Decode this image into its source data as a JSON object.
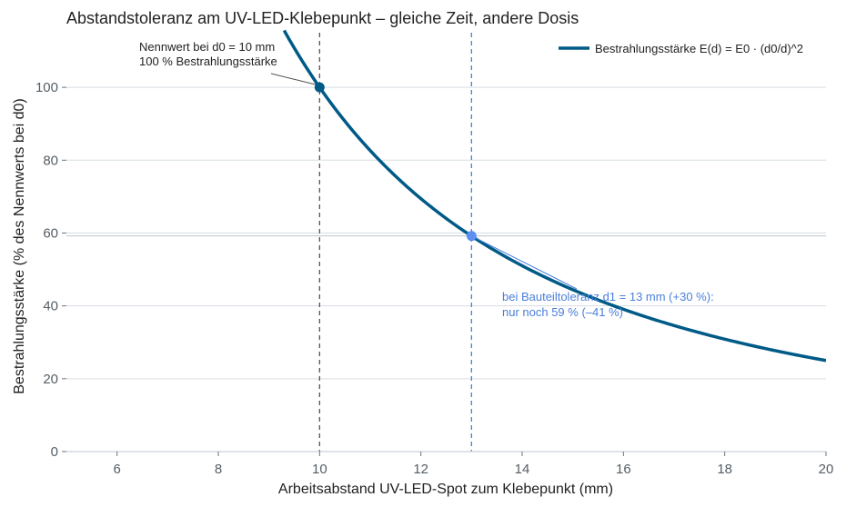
{
  "chart_data": {
    "type": "line",
    "title": "Abstandstoleranz am UV-LED-Klebepunkt – gleiche Zeit, andere Dosis",
    "xlabel": "Arbeitsabstand UV-LED-Spot zum Klebepunkt (mm)",
    "ylabel": "Bestrahlungsstärke (% des Nennwerts bei d0)",
    "xlim": [
      5,
      20
    ],
    "ylim": [
      0,
      115
    ],
    "xticks": [
      6,
      8,
      10,
      12,
      14,
      16,
      18,
      20
    ],
    "yticks": [
      0,
      20,
      40,
      60,
      80,
      100
    ],
    "grid": "horizontal",
    "legend_position": "top-right",
    "series": [
      {
        "name": "Bestrahlungsstärke E(d) = E0 · (d0/d)^2",
        "color": "#005a87",
        "formula": "100 * (10/x)^2",
        "x": [
          9.3,
          9.5,
          10,
          10.5,
          11,
          11.5,
          12,
          12.5,
          13,
          13.5,
          14,
          14.5,
          15,
          15.5,
          16,
          16.5,
          17,
          17.5,
          18,
          18.5,
          19,
          19.5,
          20
        ],
        "y": [
          115.6,
          110.8,
          100,
          90.7,
          82.6,
          75.6,
          69.4,
          64,
          59.2,
          54.9,
          51,
          47.6,
          44.4,
          41.6,
          39.1,
          36.7,
          34.6,
          32.7,
          30.9,
          29.2,
          27.7,
          26.3,
          25
        ]
      }
    ],
    "vlines": [
      {
        "x": 10,
        "color": "#555555",
        "style": "dashed"
      },
      {
        "x": 13,
        "color": "#4a7fd9",
        "style": "dashed"
      }
    ],
    "hline": {
      "y": 59.2,
      "color": "#bcc4cc"
    },
    "points": [
      {
        "x": 10,
        "y": 100,
        "color": "#005a87"
      },
      {
        "x": 13,
        "y": 59.2,
        "color": "#5b8ff0"
      }
    ],
    "annotations": [
      {
        "lines": [
          "Nennwert bei d0 = 10 mm",
          "100 % Bestrahlungsstärke"
        ],
        "color": "#222222",
        "point": {
          "x": 10,
          "y": 100
        }
      },
      {
        "lines": [
          "bei Bauteiltoleranz d1 = 13 mm (+30 %):",
          "nur noch 59 % (–41 %)"
        ],
        "color": "#4a7fd9",
        "point": {
          "x": 13,
          "y": 59.2
        }
      }
    ]
  }
}
